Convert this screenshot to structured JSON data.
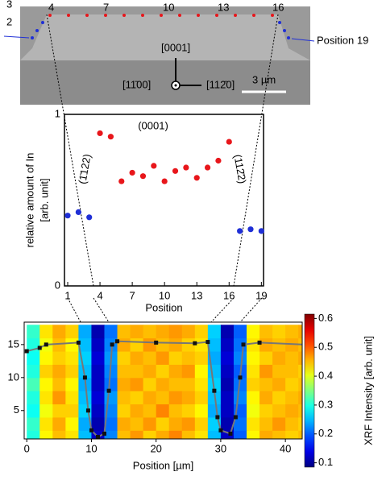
{
  "micrograph": {
    "labels": [
      "3",
      "2",
      "4",
      "7",
      "10",
      "13",
      "16",
      "Position 19",
      "[0001]",
      "[11̄00]",
      "[112̄0]",
      "3 µm"
    ]
  },
  "chart_data": [
    {
      "type": "scatter",
      "xlabel": "Position",
      "ylabel": [
        "relative amount of In",
        "[arb. unit]"
      ],
      "xlim": [
        0.7,
        19.2
      ],
      "ylim": [
        0,
        1
      ],
      "xticks": [
        1,
        4,
        7,
        10,
        13,
        16,
        19
      ],
      "yticks": [
        0,
        1
      ],
      "annotations": [
        "(0001)",
        "(1̄122)",
        "(112̄2)"
      ],
      "series": [
        {
          "color": "#1f2fd6",
          "x": [
            1,
            2,
            3
          ],
          "values": [
            0.41,
            0.43,
            0.4
          ]
        },
        {
          "color": "#e8161b",
          "x": [
            4,
            5,
            6,
            7,
            8,
            9,
            10,
            11,
            12,
            13,
            14,
            15,
            16
          ],
          "values": [
            0.89,
            0.87,
            0.61,
            0.66,
            0.64,
            0.7,
            0.61,
            0.67,
            0.69,
            0.63,
            0.69,
            0.73,
            0.84
          ]
        },
        {
          "color": "#1f2fd6",
          "x": [
            17,
            18,
            19
          ],
          "values": [
            0.32,
            0.33,
            0.32
          ]
        }
      ]
    },
    {
      "type": "heatmap",
      "xlabel": "Position [µm]",
      "colorbar_label": "XRF Intensity [arb. unit]",
      "xlim": [
        -0.4,
        42.6
      ],
      "ylim": [
        0.7,
        18.4
      ],
      "xticks": [
        0,
        10,
        20,
        30,
        40
      ],
      "yticks": [
        5,
        10,
        15
      ],
      "clim": [
        0.085,
        0.615
      ],
      "cticks": [
        0.1,
        0.2,
        0.3,
        0.4,
        0.5,
        0.6
      ],
      "xbins": [
        0,
        2,
        4,
        6,
        8,
        10,
        12,
        14,
        16,
        18,
        20,
        22,
        24,
        26,
        28,
        30,
        32,
        34,
        36,
        38,
        40,
        42,
        44
      ],
      "ybins": [
        0,
        2,
        4,
        6,
        8,
        10,
        12,
        14,
        16,
        18
      ],
      "z": [
        [
          0.3,
          0.42,
          0.45,
          0.43,
          0.25,
          0.12,
          0.22,
          0.45,
          0.47,
          0.44,
          0.46,
          0.48,
          0.45,
          0.43,
          0.25,
          0.12,
          0.2,
          0.42,
          0.46,
          0.45,
          0.44,
          0.45
        ],
        [
          0.31,
          0.43,
          0.46,
          0.42,
          0.24,
          0.11,
          0.21,
          0.46,
          0.45,
          0.47,
          0.44,
          0.46,
          0.47,
          0.44,
          0.26,
          0.11,
          0.21,
          0.43,
          0.45,
          0.47,
          0.45,
          0.44
        ],
        [
          0.29,
          0.41,
          0.44,
          0.44,
          0.26,
          0.12,
          0.22,
          0.44,
          0.46,
          0.45,
          0.48,
          0.45,
          0.44,
          0.42,
          0.24,
          0.12,
          0.2,
          0.41,
          0.44,
          0.45,
          0.46,
          0.45
        ],
        [
          0.3,
          0.43,
          0.47,
          0.43,
          0.25,
          0.13,
          0.23,
          0.45,
          0.44,
          0.46,
          0.45,
          0.47,
          0.46,
          0.44,
          0.25,
          0.12,
          0.22,
          0.42,
          0.46,
          0.44,
          0.45,
          0.46
        ],
        [
          0.32,
          0.42,
          0.45,
          0.42,
          0.24,
          0.12,
          0.21,
          0.46,
          0.47,
          0.44,
          0.46,
          0.45,
          0.45,
          0.43,
          0.26,
          0.11,
          0.21,
          0.44,
          0.45,
          0.46,
          0.44,
          0.45
        ],
        [
          0.3,
          0.44,
          0.46,
          0.44,
          0.25,
          0.12,
          0.22,
          0.45,
          0.45,
          0.46,
          0.44,
          0.46,
          0.47,
          0.42,
          0.25,
          0.12,
          0.2,
          0.43,
          0.47,
          0.45,
          0.45,
          0.44
        ],
        [
          0.29,
          0.42,
          0.44,
          0.43,
          0.26,
          0.13,
          0.23,
          0.44,
          0.46,
          0.45,
          0.47,
          0.44,
          0.45,
          0.44,
          0.24,
          0.13,
          0.22,
          0.42,
          0.44,
          0.46,
          0.45,
          0.46
        ],
        [
          0.3,
          0.41,
          0.45,
          0.42,
          0.25,
          0.12,
          0.22,
          0.46,
          0.44,
          0.47,
          0.45,
          0.46,
          0.44,
          0.43,
          0.25,
          0.12,
          0.21,
          0.43,
          0.46,
          0.45,
          0.46,
          0.45
        ],
        [
          0.31,
          0.43,
          0.46,
          0.44,
          0.24,
          0.11,
          0.21,
          0.45,
          0.46,
          0.45,
          0.46,
          0.47,
          0.46,
          0.44,
          0.26,
          0.11,
          0.2,
          0.42,
          0.45,
          0.44,
          0.45,
          0.46
        ]
      ],
      "profile": {
        "x": [
          0,
          2,
          3,
          8,
          9,
          9.5,
          10,
          11,
          12,
          12.7,
          13.2,
          14,
          20,
          26,
          28,
          29,
          29.5,
          30,
          31.5,
          32.3,
          33,
          33.5,
          36,
          43
        ],
        "y": [
          14,
          14.5,
          15,
          15.3,
          10,
          5,
          2,
          1,
          1.5,
          8,
          15,
          15.5,
          15.3,
          15.2,
          15.4,
          8,
          4,
          2,
          1.5,
          4,
          10,
          15,
          15.3,
          15
        ]
      }
    }
  ]
}
